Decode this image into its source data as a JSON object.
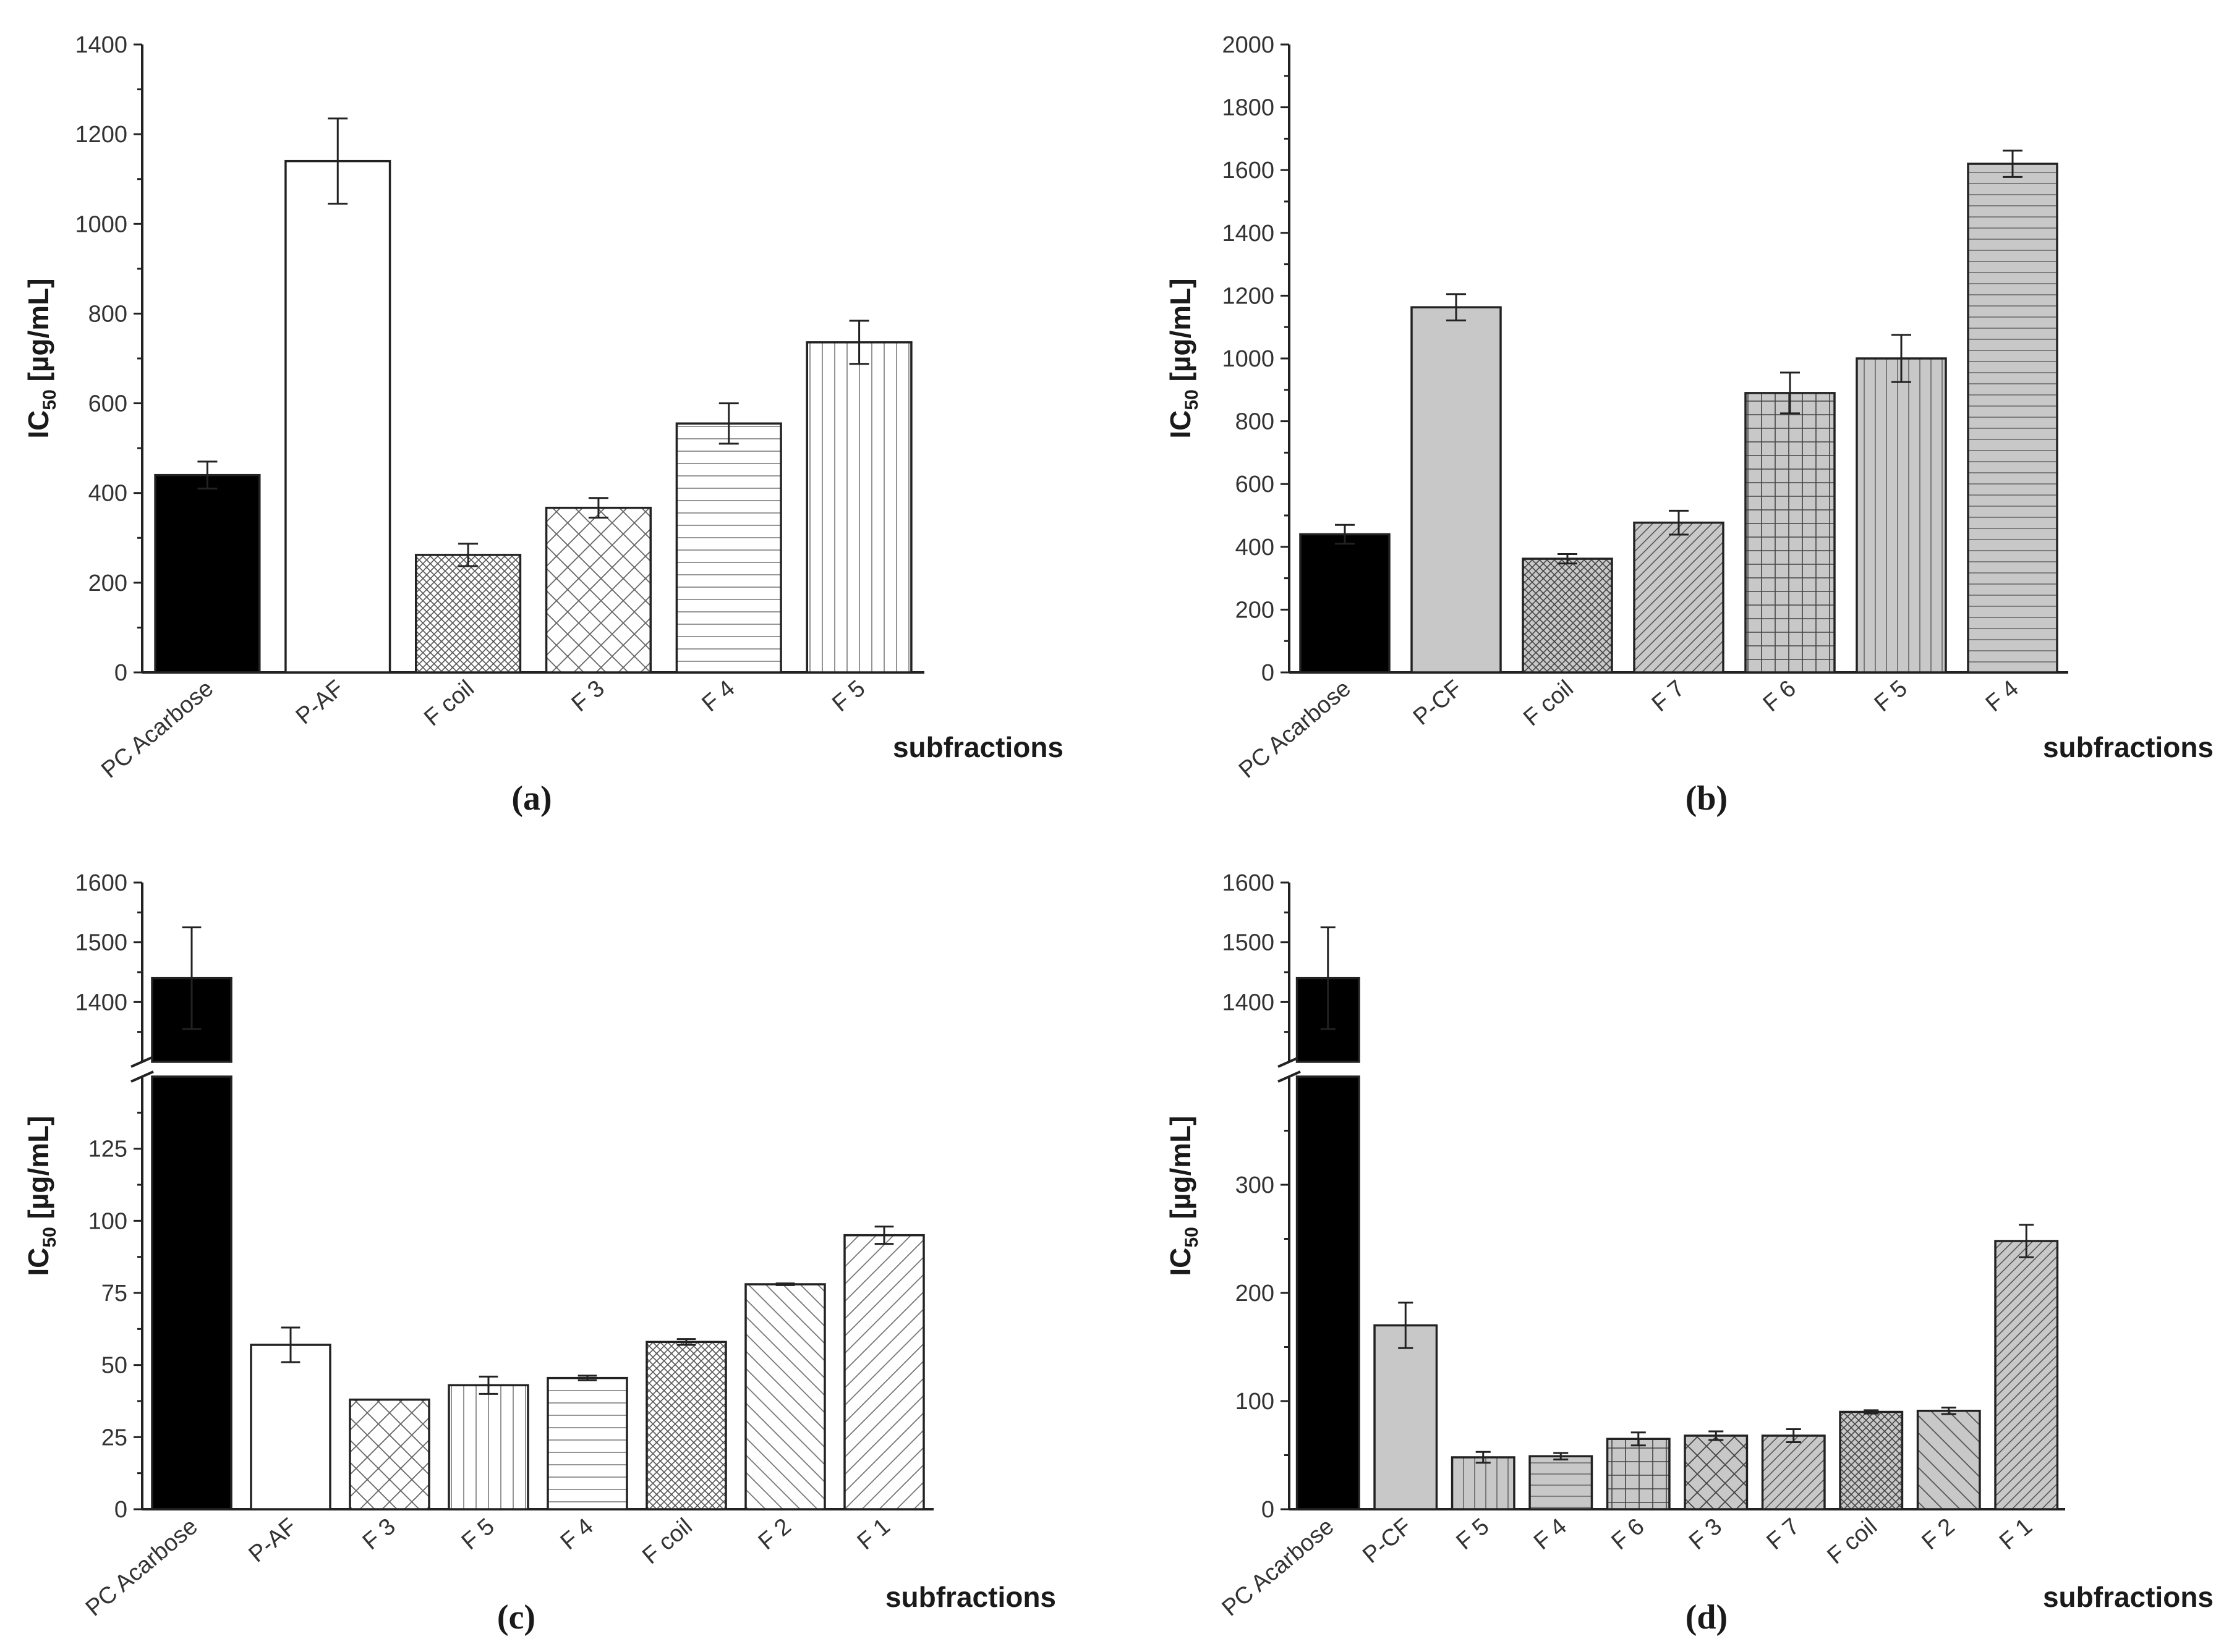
{
  "chart_data": [
    {
      "id": "a",
      "type": "bar",
      "panel_label": "(a)",
      "ylabel_main": "IC",
      "ylabel_sub": "50",
      "ylabel_unit": " [µg/mL]",
      "xlabel": "subfractions",
      "ylim": [
        0,
        1400
      ],
      "yticks": [
        0,
        200,
        400,
        600,
        800,
        1000,
        1200,
        1400
      ],
      "categories": [
        "PC Acarbose",
        "P-AF",
        "F coil",
        "F 3",
        "F 4",
        "F 5"
      ],
      "values": [
        440,
        1140,
        262,
        367,
        555,
        736
      ],
      "errors": [
        30,
        95,
        25,
        22,
        45,
        48
      ],
      "patterns": [
        "solid-black",
        "white",
        "dense-cross",
        "cross",
        "horizontal",
        "vertical"
      ]
    },
    {
      "id": "b",
      "type": "bar",
      "panel_label": "(b)",
      "ylabel_main": "IC",
      "ylabel_sub": "50",
      "ylabel_unit": " [µg/mL]",
      "xlabel": "subfractions",
      "ylim": [
        0,
        2000
      ],
      "yticks": [
        0,
        200,
        400,
        600,
        800,
        1000,
        1200,
        1400,
        1600,
        1800,
        2000
      ],
      "categories": [
        "PC Acarbose",
        "P-CF",
        "F coil",
        "F 7",
        "F 6",
        "F 5",
        "F 4"
      ],
      "values": [
        440,
        1163,
        362,
        477,
        890,
        1000,
        1620
      ],
      "errors": [
        30,
        42,
        15,
        38,
        65,
        75,
        42
      ],
      "patterns": [
        "solid-black",
        "gray",
        "gray-dense-cross",
        "gray-diagonal",
        "gray-grid",
        "gray-vertical",
        "gray-horizontal"
      ]
    },
    {
      "id": "c",
      "type": "bar",
      "panel_label": "(c)",
      "ylabel_main": "IC",
      "ylabel_sub": "50",
      "ylabel_unit": " [µg/mL]",
      "xlabel": "subfractions",
      "axis_break": true,
      "ylim_lower": [
        0,
        150
      ],
      "yticks_lower": [
        0,
        25,
        50,
        75,
        100,
        125
      ],
      "ylim_upper": [
        1300,
        1600
      ],
      "yticks_upper": [
        1400,
        1500,
        1600
      ],
      "categories": [
        "PC Acarbose",
        "P-AF",
        "F 3",
        "F 5",
        "F 4",
        "F coil",
        "F 2",
        "F 1"
      ],
      "values": [
        1440,
        57,
        38,
        43,
        45.5,
        58,
        78,
        95
      ],
      "errors": [
        85,
        6,
        0,
        3,
        0.8,
        1,
        0.3,
        3
      ],
      "patterns": [
        "solid-black",
        "white",
        "cross",
        "vertical",
        "horizontal",
        "dense-cross",
        "back-diagonal",
        "diagonal"
      ]
    },
    {
      "id": "d",
      "type": "bar",
      "panel_label": "(d)",
      "ylabel_main": "IC",
      "ylabel_sub": "50",
      "ylabel_unit": " [µg/mL]",
      "xlabel": "subfractions",
      "axis_break": true,
      "ylim_lower": [
        0,
        400
      ],
      "yticks_lower": [
        0,
        100,
        200,
        300
      ],
      "ylim_upper": [
        1300,
        1600
      ],
      "yticks_upper": [
        1400,
        1500,
        1600
      ],
      "categories": [
        "PC Acarbose",
        "P-CF",
        "F 5",
        "F 4",
        "F 6",
        "F 3",
        "F 7",
        "F coil",
        "F 2",
        "F 1"
      ],
      "values": [
        1440,
        170,
        48,
        49,
        65,
        68,
        68,
        90,
        91,
        248
      ],
      "errors": [
        85,
        21,
        5,
        3,
        6,
        4,
        6,
        1.5,
        3,
        15
      ],
      "patterns": [
        "solid-black",
        "gray",
        "gray-vertical",
        "gray-horizontal",
        "gray-grid",
        "gray-cross",
        "gray-diagonal",
        "gray-dense-cross",
        "gray-back-diagonal",
        "gray-diagonal"
      ]
    }
  ]
}
